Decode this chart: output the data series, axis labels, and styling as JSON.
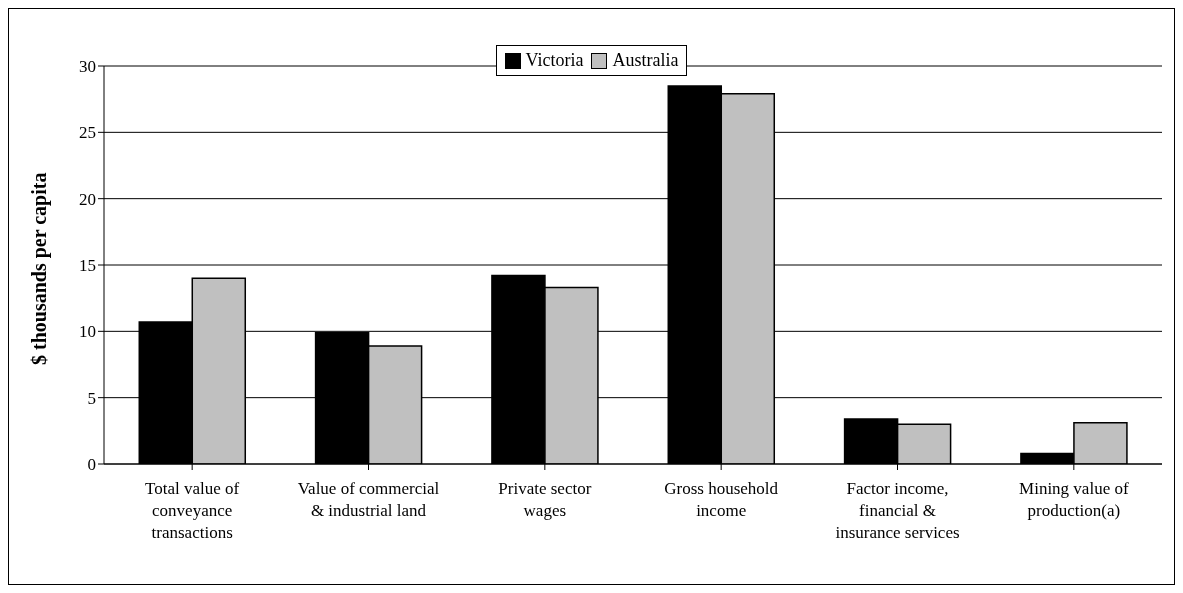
{
  "chart_data": {
    "type": "bar",
    "ylabel": "$ thousands  per capita",
    "categories": [
      "Total value of conveyance transactions",
      "Value of commercial & industrial land",
      "Private sector wages",
      "Gross household income",
      "Factor income, financial & insurance services",
      "Mining value of production(a)"
    ],
    "series": [
      {
        "name": "Victoria",
        "color": "#000000",
        "values": [
          10.7,
          9.9,
          14.2,
          28.5,
          3.4,
          0.8
        ]
      },
      {
        "name": "Australia",
        "color": "#c0c0c0",
        "values": [
          14.0,
          8.9,
          13.3,
          27.9,
          3.0,
          3.1
        ]
      }
    ],
    "ylim": [
      0,
      30
    ],
    "yticks": [
      0,
      5,
      10,
      15,
      20,
      25,
      30
    ],
    "grid": "y",
    "legend": "top"
  }
}
